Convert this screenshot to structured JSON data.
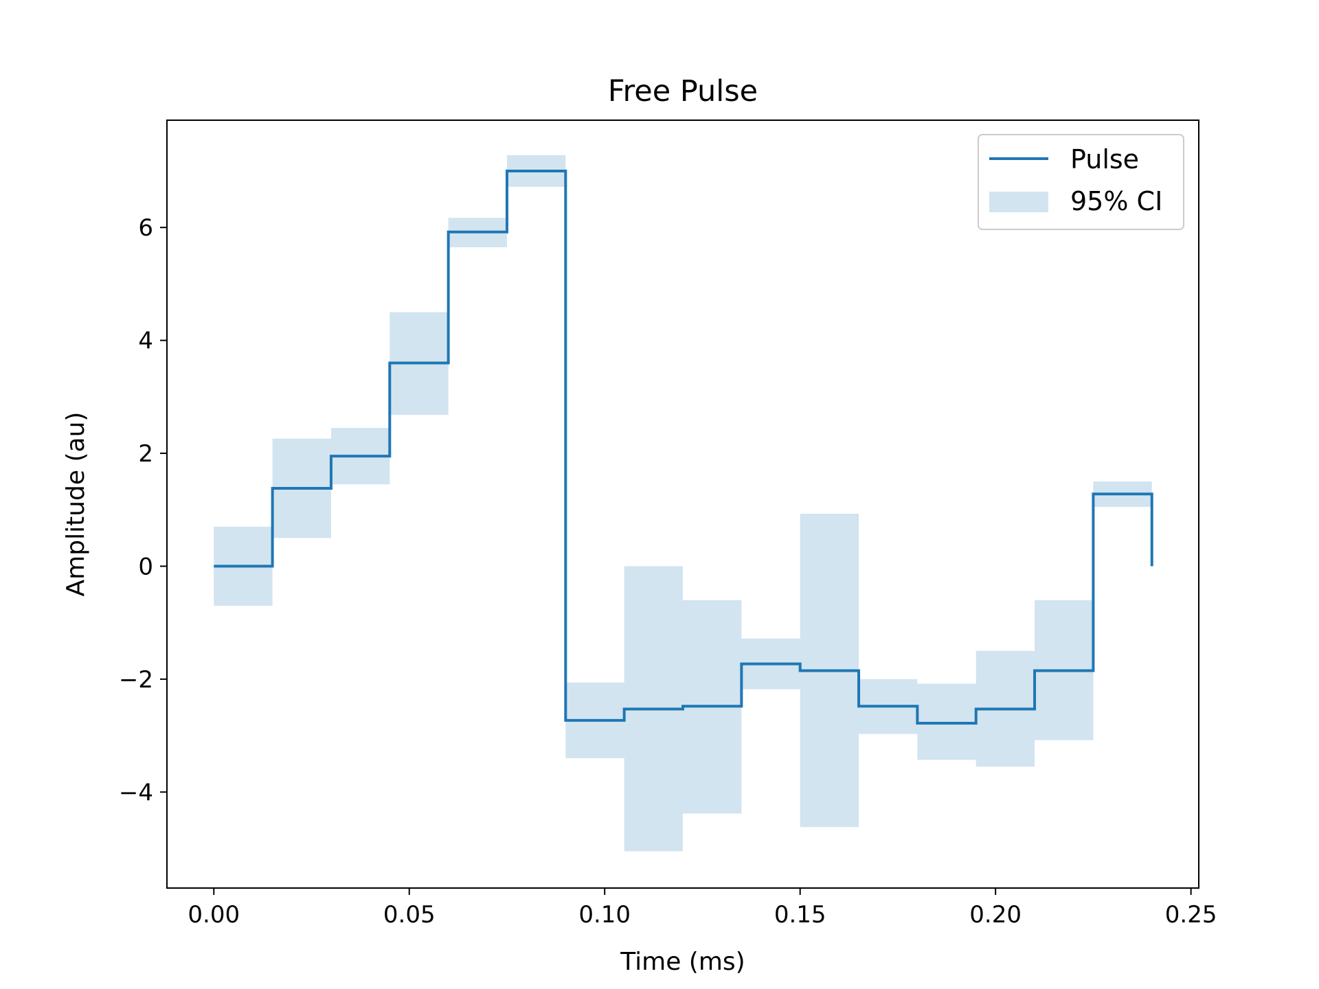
{
  "chart_data": {
    "type": "line",
    "title": "Free Pulse",
    "xlabel": "Time (ms)",
    "ylabel": "Amplitude (au)",
    "xlim": [
      -0.012,
      0.252
    ],
    "ylim": [
      -5.7,
      7.9
    ],
    "xticks": [
      0.0,
      0.05,
      0.1,
      0.15,
      0.2,
      0.25
    ],
    "xtick_labels": [
      "0.00",
      "0.05",
      "0.10",
      "0.15",
      "0.20",
      "0.25"
    ],
    "yticks": [
      -4,
      -2,
      0,
      2,
      4,
      6
    ],
    "ytick_labels": [
      "−4",
      "−2",
      "0",
      "2",
      "4",
      "6"
    ],
    "grid": false,
    "legend": "top-right",
    "step_edges": [
      0.0,
      0.015,
      0.03,
      0.045,
      0.06,
      0.075,
      0.09,
      0.105,
      0.12,
      0.135,
      0.15,
      0.165,
      0.18,
      0.195,
      0.21,
      0.225,
      0.24
    ],
    "series": [
      {
        "name": "Pulse",
        "color": "#1f77b4",
        "values": [
          0.0,
          1.38,
          1.95,
          3.6,
          5.92,
          7.0,
          -2.73,
          -2.53,
          -2.48,
          -1.73,
          -1.85,
          -2.48,
          -2.78,
          -2.53,
          -1.85,
          1.28
        ],
        "end_value": 0.0
      },
      {
        "name": "95% CI",
        "color": "#1f77b4",
        "opacity": 0.2,
        "lower": [
          -0.7,
          0.5,
          1.45,
          2.68,
          5.65,
          6.72,
          -3.4,
          -5.05,
          -4.38,
          -2.18,
          -4.62,
          -2.97,
          -3.43,
          -3.55,
          -3.08,
          1.05
        ],
        "upper": [
          0.7,
          2.26,
          2.45,
          4.5,
          6.17,
          7.28,
          -2.06,
          0.0,
          -0.6,
          -1.28,
          0.93,
          -2.0,
          -2.08,
          -1.5,
          -0.6,
          1.5
        ]
      }
    ]
  }
}
